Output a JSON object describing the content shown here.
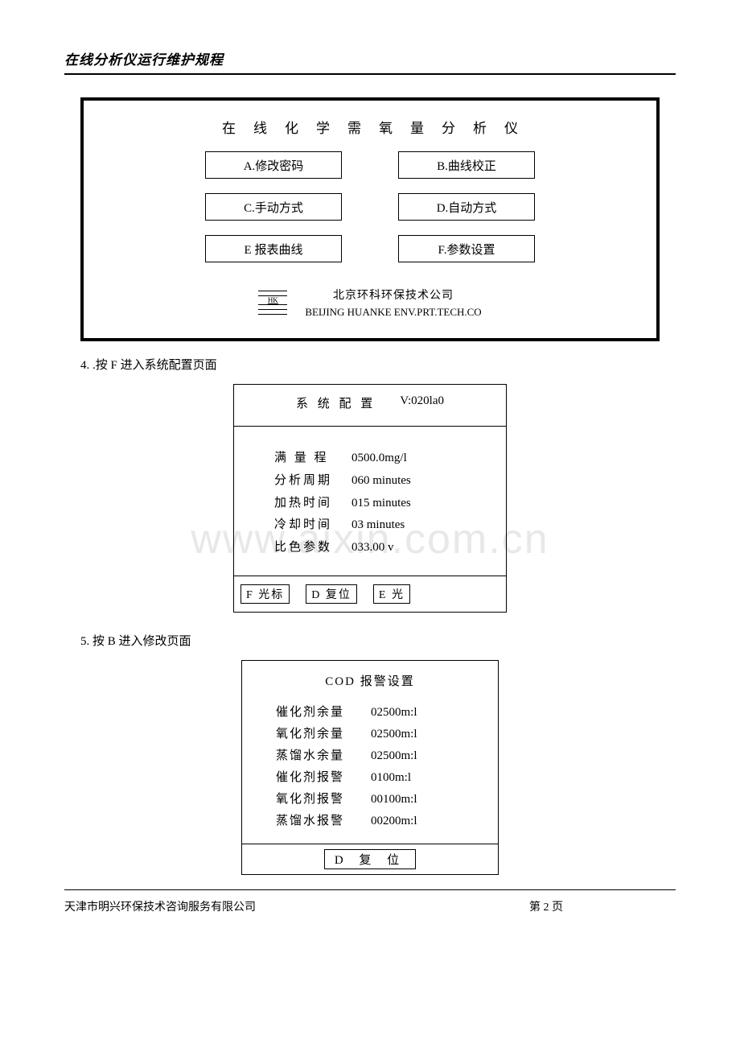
{
  "header": {
    "title": "在线分析仪运行维护规程"
  },
  "watermark": "www.aixin.com.cn",
  "panel1": {
    "title": "在线化学需氧量分析仪",
    "buttons": [
      {
        "label": "A.修改密码"
      },
      {
        "label": "B.曲线校正"
      },
      {
        "label": "C.手动方式"
      },
      {
        "label": "D.自动方式"
      },
      {
        "label": "E 报表曲线"
      },
      {
        "label": "F.参数设置"
      }
    ],
    "logo_text": "HK",
    "company_cn": "北京环科环保技术公司",
    "company_en": "BEIJING HUANKE ENV.PRT.TECH.CO"
  },
  "step4": "4. .按 F 进入系统配置页面",
  "config": {
    "title": "系 统 配 置",
    "version": "V:020la0",
    "rows": [
      {
        "label": "满 量 程",
        "value": "0500.0mg/l"
      },
      {
        "label": "分析周期",
        "value": "060   minutes"
      },
      {
        "label": "加热时间",
        "value": "015   minutes"
      },
      {
        "label": "冷却时间",
        "value": "03    minutes"
      },
      {
        "label": "比色参数",
        "value": "033.00   v"
      }
    ],
    "foot": [
      {
        "label": "F 光标"
      },
      {
        "label": "D 复位"
      },
      {
        "label": "E    光"
      }
    ]
  },
  "step5": "5.  按 B 进入修改页面",
  "alarm": {
    "title": "COD 报警设置",
    "rows": [
      {
        "label": "催化剂余量",
        "value": "02500m:l"
      },
      {
        "label": "氧化剂余量",
        "value": "02500m:l"
      },
      {
        "label": "蒸馏水余量",
        "value": "02500m:l"
      },
      {
        "label": "催化剂报警",
        "value": "0100m:l"
      },
      {
        "label": "氧化剂报警",
        "value": "00100m:l"
      },
      {
        "label": "蒸馏水报警",
        "value": "00200m:l"
      }
    ],
    "foot": "D   复 位"
  },
  "footer": {
    "company": "天津市明兴环保技术咨询服务有限公司",
    "page": "第 2 页"
  }
}
